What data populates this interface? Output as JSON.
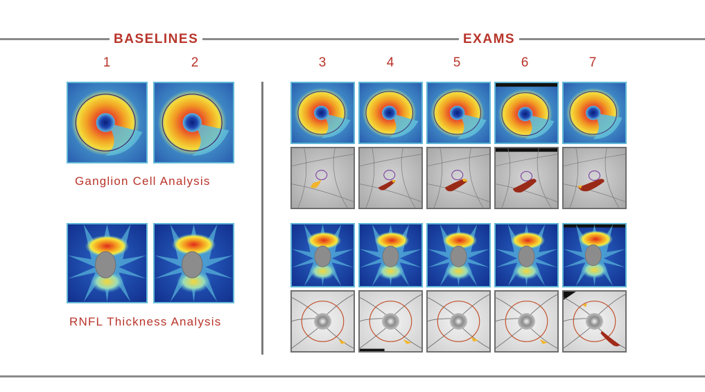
{
  "headers": {
    "baselines": "BASELINES",
    "exams": "EXAMS"
  },
  "columns": [
    "1",
    "2",
    "3",
    "4",
    "5",
    "6",
    "7"
  ],
  "captions": {
    "ganglion": "Ganglion Cell Analysis",
    "rnfl": "RNFL Thickness Analysis"
  },
  "colors": {
    "accent": "#b8342a",
    "rule": "#8a8a8a"
  }
}
